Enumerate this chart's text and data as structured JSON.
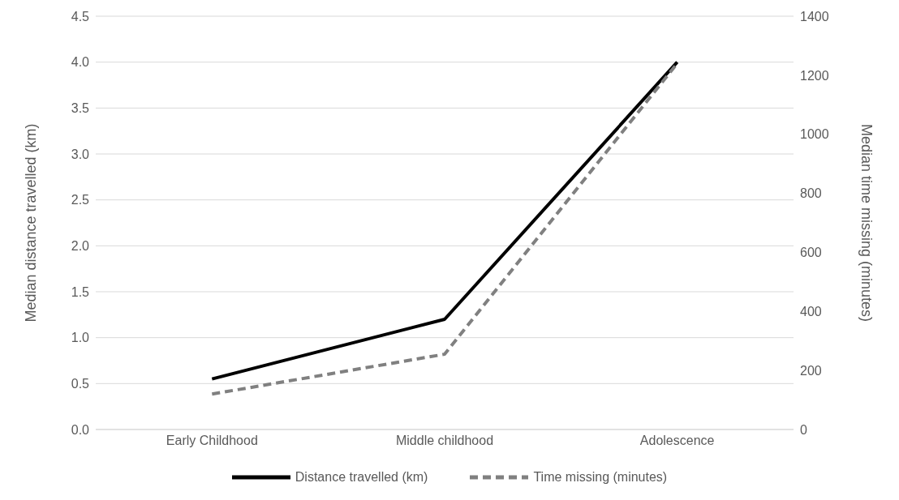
{
  "chart_data": {
    "type": "line",
    "categories": [
      "Early Childhood",
      "Middle childhood",
      "Adolescence"
    ],
    "ylabel": "Median distance travelled (km)",
    "y2label": "Median time missing (minutes)",
    "ylim": [
      0,
      4.5
    ],
    "yticks": [
      {
        "value": 0,
        "label": "0.0"
      },
      {
        "value": 0.5,
        "label": "0.5"
      },
      {
        "value": 1,
        "label": "1.0"
      },
      {
        "value": 1.5,
        "label": "1.5"
      },
      {
        "value": 2,
        "label": "2.0"
      },
      {
        "value": 2.5,
        "label": "2.5"
      },
      {
        "value": 3,
        "label": "3.0"
      },
      {
        "value": 3.5,
        "label": "3.5"
      },
      {
        "value": 4,
        "label": "4.0"
      },
      {
        "value": 4.5,
        "label": "4.5"
      }
    ],
    "y2lim": [
      0,
      1400
    ],
    "y2ticks": [
      0,
      200,
      400,
      600,
      800,
      1000,
      1200,
      1400
    ],
    "grid": "y",
    "legend": "bottom",
    "marker": "none",
    "series": [
      {
        "name": "Distance travelled (km)",
        "color": "#000000",
        "values": [
          0.55,
          1.2,
          4.0
        ],
        "line_style": "solid"
      },
      {
        "name": "Time missing (minutes)",
        "color": "#808080",
        "values": [
          120,
          255,
          1240
        ],
        "axis": "y2",
        "line_style": "dashed"
      }
    ]
  }
}
